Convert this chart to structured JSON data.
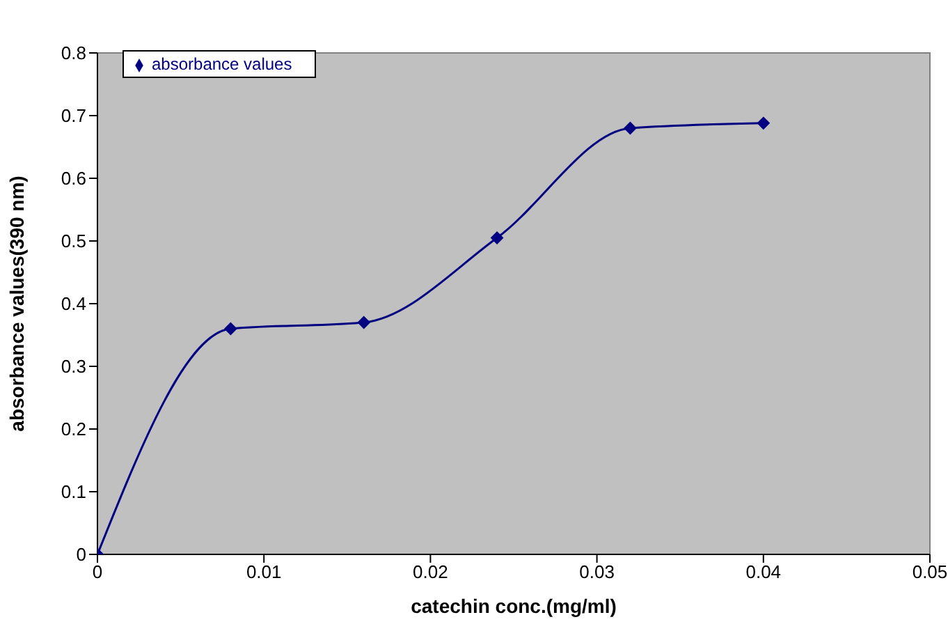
{
  "chart_data": {
    "type": "line",
    "xlabel": "catechin conc.(mg/ml)",
    "ylabel": "absorbance values(390 nm)",
    "x": [
      0,
      0.008,
      0.016,
      0.024,
      0.032,
      0.04
    ],
    "series": [
      {
        "name": "absorbance values",
        "color": "#000080",
        "values": [
          0,
          0.36,
          0.37,
          0.505,
          0.68,
          0.688
        ]
      }
    ],
    "xlim": [
      0,
      0.05
    ],
    "xticks": [
      0,
      0.01,
      0.02,
      0.03,
      0.04,
      0.05
    ],
    "ylim": [
      0,
      0.8
    ],
    "yticks": [
      0,
      0.1,
      0.2,
      0.3,
      0.4,
      0.5,
      0.6,
      0.7,
      0.8
    ],
    "legend": "top left",
    "marker": "diamond",
    "line_style": "solid"
  }
}
